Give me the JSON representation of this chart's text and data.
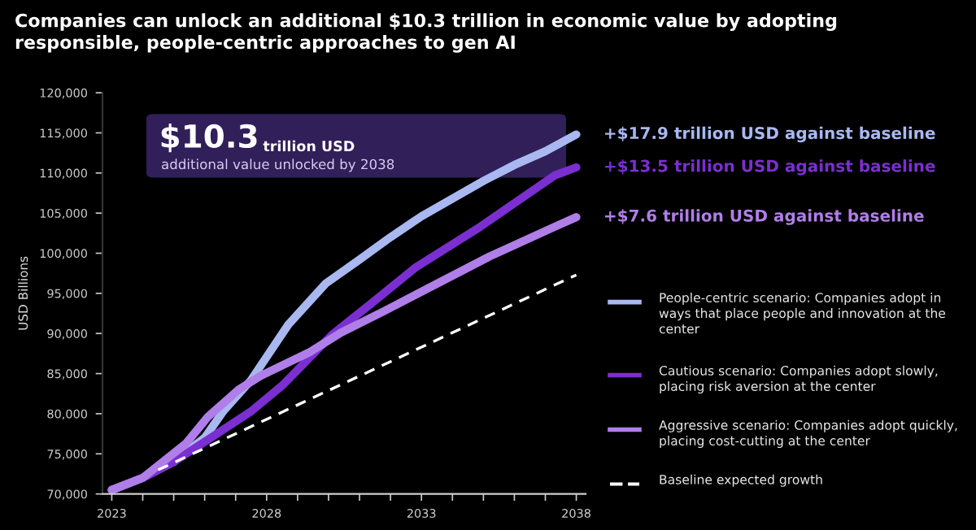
{
  "chart_data": {
    "type": "line",
    "title": "Companies can unlock an additional $10.3 trillion in economic value by adopting responsible, people-centric approaches to gen AI",
    "ylabel": "USD Billions",
    "xlim": [
      2022.7,
      2038.3
    ],
    "xticks": [
      2023,
      {
        "value": 2024,
        "label": null
      },
      {
        "value": 2025,
        "label": null
      },
      {
        "value": 2026,
        "label": null
      },
      {
        "value": 2027,
        "label": null
      },
      2028,
      {
        "value": 2029,
        "label": null
      },
      {
        "value": 2030,
        "label": null
      },
      {
        "value": 2031,
        "label": null
      },
      {
        "value": 2032,
        "label": null
      },
      2033,
      {
        "value": 2034,
        "label": null
      },
      {
        "value": 2035,
        "label": null
      },
      {
        "value": 2036,
        "label": null
      },
      {
        "value": 2037,
        "label": null
      },
      2038
    ],
    "ylim": [
      70000,
      120000
    ],
    "yticks": [
      {
        "value": 70000,
        "label": "70,000"
      },
      {
        "value": 75000,
        "label": "75,000"
      },
      {
        "value": 80000,
        "label": "80,000"
      },
      {
        "value": 85000,
        "label": "85,000"
      },
      {
        "value": 90000,
        "label": "90,000"
      },
      {
        "value": 95000,
        "label": "95,000"
      },
      {
        "value": 100000,
        "label": "100,000"
      },
      {
        "value": 105000,
        "label": "105,000"
      },
      {
        "value": 110000,
        "label": "110,000"
      },
      {
        "value": 115000,
        "label": "115,000"
      },
      {
        "value": 120000,
        "label": "120,000"
      }
    ],
    "grid": false,
    "legend": "right",
    "marker": "none",
    "series": [
      {
        "name": "People-centric scenario: Companies adopt in ways that place people and innovation at the center",
        "color": "#a9b8f0",
        "x": [
          2023,
          2024,
          2025,
          2026,
          2026.6,
          2027.5,
          2028.7,
          2029.9,
          2031,
          2032,
          2033,
          2034,
          2035,
          2036,
          2037,
          2038
        ],
        "values": [
          70500,
          72000,
          74000,
          77000,
          80300,
          84200,
          91100,
          96200,
          99200,
          102000,
          104600,
          106800,
          109000,
          111000,
          112700,
          114800
        ]
      },
      {
        "name": "Cautious scenario: Companies adopt slowly, placing risk aversion at the center",
        "color": "#7b2fd0",
        "x": [
          2023,
          2024,
          2025,
          2026,
          2027.5,
          2028.5,
          2030.1,
          2031.4,
          2032.8,
          2034.9,
          2037.3,
          2038
        ],
        "values": [
          70500,
          72000,
          74000,
          76500,
          80300,
          83500,
          89800,
          93800,
          98200,
          103300,
          109700,
          110700
        ]
      },
      {
        "name": "Aggressive scenario: Companies adopt quickly, placing cost-cutting at the center",
        "color": "#b07ee8",
        "x": [
          2023,
          2024,
          2025.4,
          2026.1,
          2027.1,
          2027.8,
          2029.4,
          2030.4,
          2031.8,
          2033.5,
          2035.2,
          2037.3,
          2038
        ],
        "values": [
          70500,
          72000,
          76300,
          79600,
          83000,
          84700,
          87700,
          90100,
          92800,
          96200,
          99600,
          103300,
          104500
        ]
      },
      {
        "name": "Baseline expected growth",
        "color": "#ffffff",
        "line_style": "dashed",
        "x": [
          2024.5,
          2038
        ],
        "values": [
          73000,
          97300
        ]
      }
    ],
    "annotations": [
      "$10.3",
      "trillion USD",
      "additional value unlocked by 2038",
      "+$17.9 trillion USD against baseline",
      "+$13.5 trillion USD against baseline",
      "+$7.6 trillion USD against baseline"
    ]
  }
}
